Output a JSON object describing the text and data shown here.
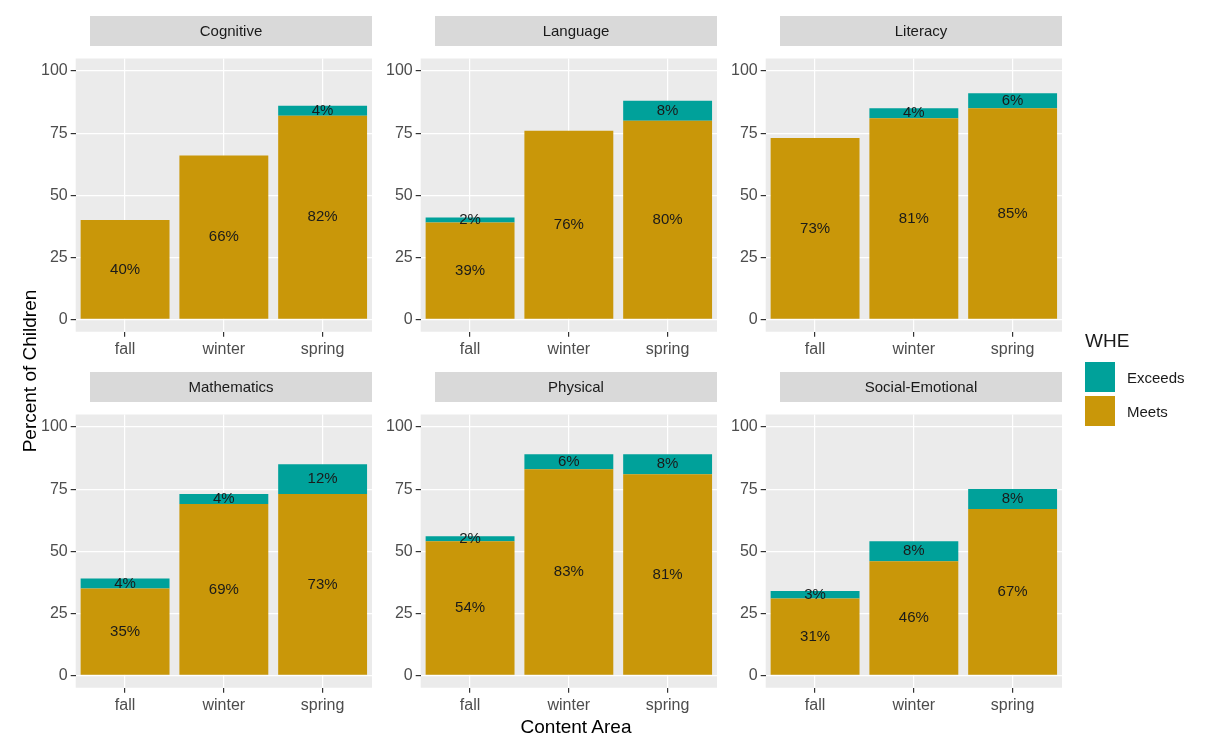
{
  "chart_data": [
    {
      "type": "bar",
      "stacked": true,
      "title": "Cognitive",
      "ylabel": "Percent of Children",
      "categories": [
        "fall",
        "winter",
        "spring"
      ],
      "ylim": [
        -5,
        105
      ],
      "yticks": [
        0,
        25,
        50,
        75,
        100
      ],
      "grid": true,
      "legend": "right",
      "legend_title": "WHE",
      "series": [
        {
          "name": "Meets",
          "color": "#c99709",
          "values": [
            40,
            66,
            82
          ],
          "value_labels": [
            "40%",
            "66%",
            "82%"
          ]
        },
        {
          "name": "Exceeds",
          "color": "#00a19a",
          "values": [
            null,
            null,
            4
          ],
          "value_labels": [
            null,
            null,
            "4%"
          ]
        }
      ]
    },
    {
      "type": "bar",
      "stacked": true,
      "title": "Language",
      "categories": [
        "fall",
        "winter",
        "spring"
      ],
      "ylim": [
        -5,
        105
      ],
      "yticks": [
        0,
        25,
        50,
        75,
        100
      ],
      "grid": true,
      "legend": false,
      "series": [
        {
          "color": "#c99709",
          "values": [
            39,
            76,
            80
          ],
          "value_labels": [
            "39%",
            "76%",
            "80%"
          ]
        },
        {
          "color": "#00a19a",
          "values": [
            2,
            null,
            8
          ],
          "value_labels": [
            "2%",
            null,
            "8%"
          ]
        }
      ]
    },
    {
      "type": "bar",
      "stacked": true,
      "title": "Literacy",
      "categories": [
        "fall",
        "winter",
        "spring"
      ],
      "ylim": [
        -5,
        105
      ],
      "yticks": [
        0,
        25,
        50,
        75,
        100
      ],
      "grid": true,
      "legend": false,
      "series": [
        {
          "color": "#c99709",
          "values": [
            73,
            81,
            85
          ],
          "value_labels": [
            "73%",
            "81%",
            "85%"
          ]
        },
        {
          "color": "#00a19a",
          "values": [
            null,
            4,
            6
          ],
          "value_labels": [
            null,
            "4%",
            "6%"
          ]
        }
      ]
    },
    {
      "type": "bar",
      "stacked": true,
      "title": "Mathematics",
      "categories": [
        "fall",
        "winter",
        "spring"
      ],
      "ylim": [
        -5,
        105
      ],
      "yticks": [
        0,
        25,
        50,
        75,
        100
      ],
      "grid": true,
      "legend": false,
      "series": [
        {
          "color": "#c99709",
          "values": [
            35,
            69,
            73
          ],
          "value_labels": [
            "35%",
            "69%",
            "73%"
          ]
        },
        {
          "color": "#00a19a",
          "values": [
            4,
            4,
            12
          ],
          "value_labels": [
            "4%",
            "4%",
            "12%"
          ]
        }
      ]
    },
    {
      "type": "bar",
      "stacked": true,
      "title": "Physical",
      "xlabel": "Content Area",
      "categories": [
        "fall",
        "winter",
        "spring"
      ],
      "ylim": [
        -5,
        105
      ],
      "yticks": [
        0,
        25,
        50,
        75,
        100
      ],
      "grid": true,
      "legend": false,
      "series": [
        {
          "color": "#c99709",
          "values": [
            54,
            83,
            81
          ],
          "value_labels": [
            "54%",
            "83%",
            "81%"
          ]
        },
        {
          "color": "#00a19a",
          "values": [
            2,
            6,
            8
          ],
          "value_labels": [
            "2%",
            "6%",
            "8%"
          ]
        }
      ]
    },
    {
      "type": "bar",
      "stacked": true,
      "title": "Social-Emotional",
      "categories": [
        "fall",
        "winter",
        "spring"
      ],
      "ylim": [
        -5,
        105
      ],
      "yticks": [
        0,
        25,
        50,
        75,
        100
      ],
      "grid": true,
      "legend": false,
      "series": [
        {
          "color": "#c99709",
          "values": [
            31,
            46,
            67
          ],
          "value_labels": [
            "31%",
            "46%",
            "67%"
          ]
        },
        {
          "color": "#00a19a",
          "values": [
            3,
            8,
            8
          ],
          "value_labels": [
            "3%",
            "8%",
            "8%"
          ]
        }
      ]
    }
  ]
}
